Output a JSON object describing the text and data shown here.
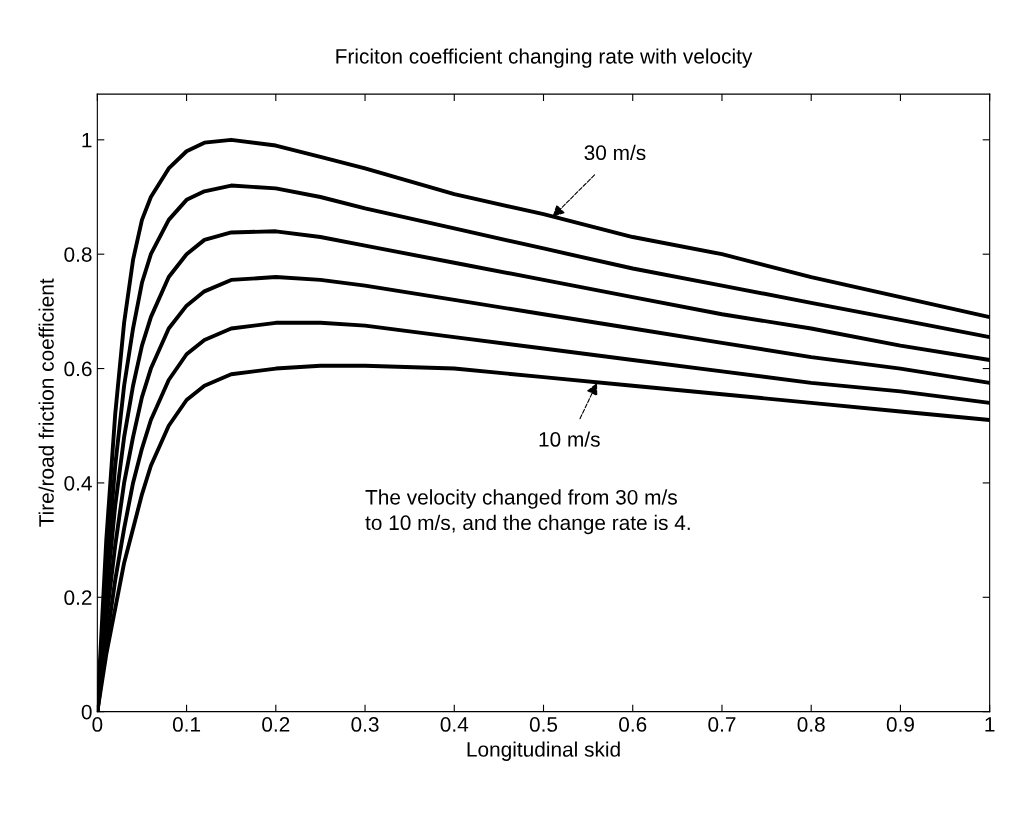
{
  "chart_data": {
    "type": "line",
    "title": "Friciton coefficient changing rate with velocity",
    "xlabel": "Longitudinal skid",
    "ylabel": "Tire/road friction coefficient",
    "x": [
      0,
      0.005,
      0.01,
      0.02,
      0.03,
      0.04,
      0.05,
      0.06,
      0.08,
      0.1,
      0.12,
      0.15,
      0.2,
      0.25,
      0.3,
      0.4,
      0.5,
      0.6,
      0.7,
      0.8,
      0.9,
      1.0
    ],
    "series": [
      {
        "color": "#000000",
        "values": [
          0,
          0.15,
          0.3,
          0.52,
          0.68,
          0.79,
          0.86,
          0.9,
          0.95,
          0.98,
          0.995,
          1.0,
          0.99,
          0.97,
          0.95,
          0.905,
          0.87,
          0.83,
          0.8,
          0.76,
          0.725,
          0.69
        ]
      },
      {
        "color": "#000000",
        "values": [
          0,
          0.12,
          0.24,
          0.43,
          0.57,
          0.67,
          0.75,
          0.8,
          0.86,
          0.895,
          0.91,
          0.92,
          0.915,
          0.9,
          0.88,
          0.845,
          0.81,
          0.775,
          0.745,
          0.715,
          0.685,
          0.655
        ]
      },
      {
        "color": "#000000",
        "values": [
          0,
          0.1,
          0.2,
          0.36,
          0.48,
          0.57,
          0.64,
          0.69,
          0.76,
          0.8,
          0.825,
          0.838,
          0.84,
          0.83,
          0.815,
          0.785,
          0.755,
          0.725,
          0.695,
          0.67,
          0.64,
          0.615
        ]
      },
      {
        "color": "#000000",
        "values": [
          0,
          0.08,
          0.16,
          0.29,
          0.4,
          0.48,
          0.55,
          0.6,
          0.67,
          0.71,
          0.735,
          0.755,
          0.76,
          0.755,
          0.745,
          0.72,
          0.695,
          0.67,
          0.645,
          0.62,
          0.6,
          0.575
        ]
      },
      {
        "color": "#000000",
        "values": [
          0,
          0.06,
          0.12,
          0.23,
          0.32,
          0.4,
          0.46,
          0.51,
          0.58,
          0.625,
          0.65,
          0.67,
          0.68,
          0.68,
          0.675,
          0.655,
          0.635,
          0.615,
          0.595,
          0.575,
          0.56,
          0.54
        ]
      },
      {
        "color": "#000000",
        "values": [
          0,
          0.05,
          0.1,
          0.18,
          0.26,
          0.32,
          0.38,
          0.43,
          0.5,
          0.545,
          0.57,
          0.59,
          0.6,
          0.605,
          0.605,
          0.6,
          0.585,
          0.57,
          0.555,
          0.54,
          0.525,
          0.51
        ]
      }
    ],
    "xlim": [
      0,
      1
    ],
    "xticks": [
      0,
      0.1,
      0.2,
      0.3,
      0.4,
      0.5,
      0.6,
      0.7,
      0.8,
      0.9,
      1
    ],
    "ylim": [
      0,
      1.08
    ],
    "yticks": [
      0,
      0.2,
      0.4,
      0.6,
      0.8,
      1
    ],
    "grid": false,
    "marker": "none",
    "line_style": "solid",
    "annotations": [
      {
        "text": "30 m/s",
        "x": 0.51,
        "y": 0.865
      },
      {
        "text": "10 m/s",
        "x": 0.56,
        "y": 0.575
      },
      "The velocity changed from 30 m/s\nto 10 m/s, and the change rate is 4."
    ]
  }
}
